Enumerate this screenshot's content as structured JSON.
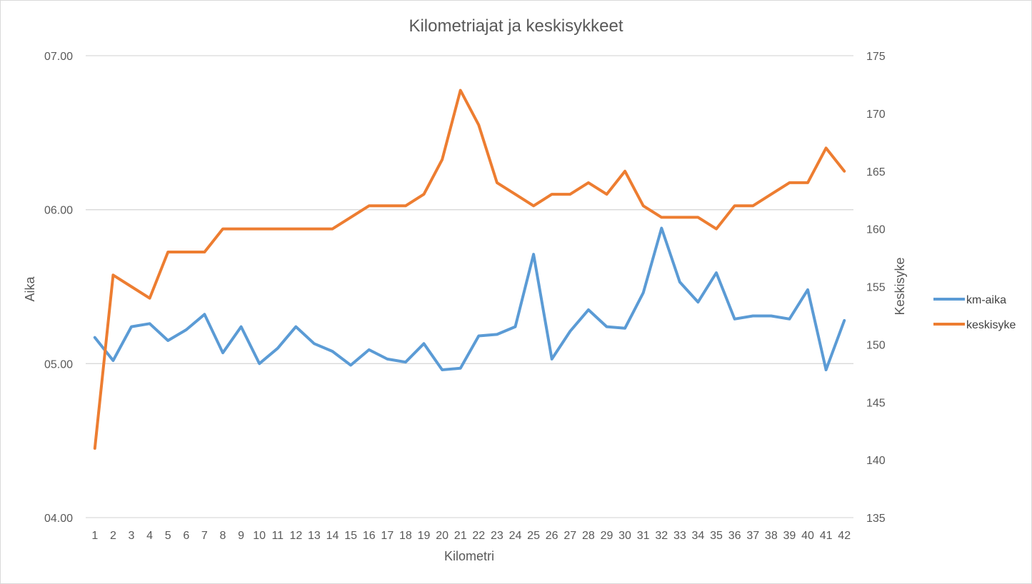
{
  "chart_data": {
    "type": "line",
    "title": "Kilometriajat ja keskisykkeet",
    "xlabel": "Kilometri",
    "ylabel_left": "Aika",
    "ylabel_right": "Keskisyke",
    "categories": [
      "1",
      "2",
      "3",
      "4",
      "5",
      "6",
      "7",
      "8",
      "9",
      "10",
      "11",
      "12",
      "13",
      "14",
      "15",
      "16",
      "17",
      "18",
      "19",
      "20",
      "21",
      "22",
      "23",
      "24",
      "25",
      "26",
      "27",
      "28",
      "29",
      "30",
      "31",
      "32",
      "33",
      "34",
      "35",
      "36",
      "37",
      "38",
      "39",
      "40",
      "41",
      "42"
    ],
    "y_left": {
      "min": 4.0,
      "max": 7.0,
      "ticks": [
        "04.00",
        "05.00",
        "06.00",
        "07.00"
      ],
      "tick_values": [
        4.0,
        5.0,
        6.0,
        7.0
      ]
    },
    "y_right": {
      "min": 135,
      "max": 175,
      "ticks": [
        "135",
        "140",
        "145",
        "150",
        "155",
        "160",
        "165",
        "170",
        "175"
      ],
      "tick_values": [
        135,
        140,
        145,
        150,
        155,
        160,
        165,
        170,
        175
      ]
    },
    "grid": true,
    "legend_position": "right",
    "series": [
      {
        "name": "km-aika",
        "axis": "left",
        "color": "#5b9bd5",
        "values": [
          5.17,
          5.02,
          5.24,
          5.26,
          5.15,
          5.22,
          5.32,
          5.07,
          5.24,
          5.0,
          5.1,
          5.24,
          5.13,
          5.08,
          4.99,
          5.09,
          5.03,
          5.01,
          5.13,
          4.96,
          4.97,
          5.18,
          5.19,
          5.24,
          5.71,
          5.03,
          5.21,
          5.35,
          5.24,
          5.23,
          5.46,
          5.88,
          5.53,
          5.4,
          5.59,
          5.29,
          5.31,
          5.31,
          5.29,
          5.48,
          4.96,
          5.28
        ]
      },
      {
        "name": "keskisyke",
        "axis": "right",
        "color": "#ed7d31",
        "values": [
          141,
          156,
          155,
          154,
          158,
          158,
          158,
          160,
          160,
          160,
          160,
          160,
          160,
          160,
          161,
          162,
          162,
          162,
          163,
          166,
          172,
          169,
          164,
          163,
          162,
          163,
          163,
          164,
          163,
          165,
          162,
          161,
          161,
          161,
          160,
          162,
          162,
          163,
          164,
          164,
          167,
          165
        ]
      }
    ]
  }
}
